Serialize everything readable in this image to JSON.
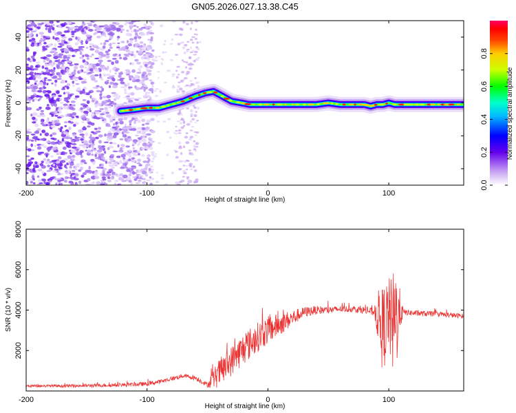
{
  "title": "GN05.2026.027.13.38.C45",
  "colors": {
    "snr_line": "#ee3333",
    "axis": "#000000"
  },
  "chart_data": [
    {
      "type": "heatmap",
      "name": "spectrogram",
      "xlabel": "Height of straight line (km)",
      "ylabel": "Frequency (Hz)",
      "xlim": [
        -200,
        162
      ],
      "ylim": [
        -50,
        50
      ],
      "x_ticks": [
        -200,
        -100,
        0,
        100
      ],
      "x_tick_labels": [
        "-200",
        "-100",
        "0",
        "100"
      ],
      "y_ticks": [
        -40,
        -20,
        0,
        20,
        40
      ],
      "y_tick_labels": [
        "-40",
        "-20",
        "0",
        "20",
        "40"
      ],
      "colorbar": {
        "label": "Normalized spectral amplitude",
        "range": [
          0,
          1
        ],
        "ticks": [
          0.0,
          0.2,
          0.4,
          0.6,
          0.8
        ],
        "tick_labels": [
          "0.0",
          "0.2",
          "0.4",
          "0.6",
          "0.8"
        ]
      },
      "ridge": {
        "x": [
          -122,
          -110,
          -100,
          -90,
          -80,
          -70,
          -60,
          -52,
          -45,
          -40,
          -35,
          -30,
          -22,
          -15,
          -5,
          5,
          15,
          25,
          40,
          50,
          60,
          70,
          80,
          85,
          90,
          95,
          100,
          105,
          115,
          130,
          145,
          162
        ],
        "y": [
          -5,
          -4,
          -3,
          -3,
          -1,
          1,
          4,
          6,
          7,
          5,
          3,
          1,
          0,
          -1,
          -1,
          -1,
          -1,
          -1,
          -1,
          0,
          -1,
          -1,
          -1,
          -2,
          -1,
          -1,
          0,
          -1,
          -1,
          -1,
          -1,
          -1
        ]
      },
      "noise_region_x": [
        -200,
        -100
      ]
    },
    {
      "type": "line",
      "name": "snr",
      "xlabel": "Height of straight line (km)",
      "ylabel": "SNR (10 * v/v)",
      "xlim": [
        -200,
        162
      ],
      "ylim": [
        0,
        8000
      ],
      "x_ticks": [
        -200,
        -100,
        0,
        100
      ],
      "x_tick_labels": [
        "-200",
        "-100",
        "0",
        "100"
      ],
      "y_ticks": [
        2000,
        4000,
        6000,
        8000
      ],
      "y_tick_labels": [
        "2000",
        "4000",
        "6000",
        "8000"
      ],
      "envelope": {
        "x": [
          -200,
          -160,
          -120,
          -100,
          -90,
          -80,
          -70,
          -60,
          -50,
          -40,
          -30,
          -20,
          -10,
          0,
          10,
          20,
          30,
          40,
          50,
          60,
          70,
          80,
          88,
          92,
          95,
          98,
          100,
          103,
          106,
          108,
          112,
          120,
          140,
          162
        ],
        "y": [
          250,
          250,
          300,
          350,
          450,
          600,
          750,
          650,
          300,
          900,
          1500,
          2100,
          2600,
          3000,
          3300,
          3600,
          3900,
          4000,
          4000,
          4050,
          4050,
          4000,
          3900,
          3600,
          3000,
          3500,
          3800,
          3200,
          3500,
          4000,
          3900,
          3850,
          3800,
          3700
        ]
      },
      "noise_amplitude": {
        "x": [
          -200,
          -50,
          -45,
          -40,
          -20,
          0,
          30,
          60,
          88,
          92,
          95,
          100,
          103,
          106,
          108,
          112,
          162
        ],
        "y": [
          60,
          120,
          500,
          700,
          800,
          700,
          250,
          150,
          200,
          1500,
          2200,
          1800,
          2500,
          3000,
          1500,
          150,
          120
        ]
      }
    }
  ]
}
